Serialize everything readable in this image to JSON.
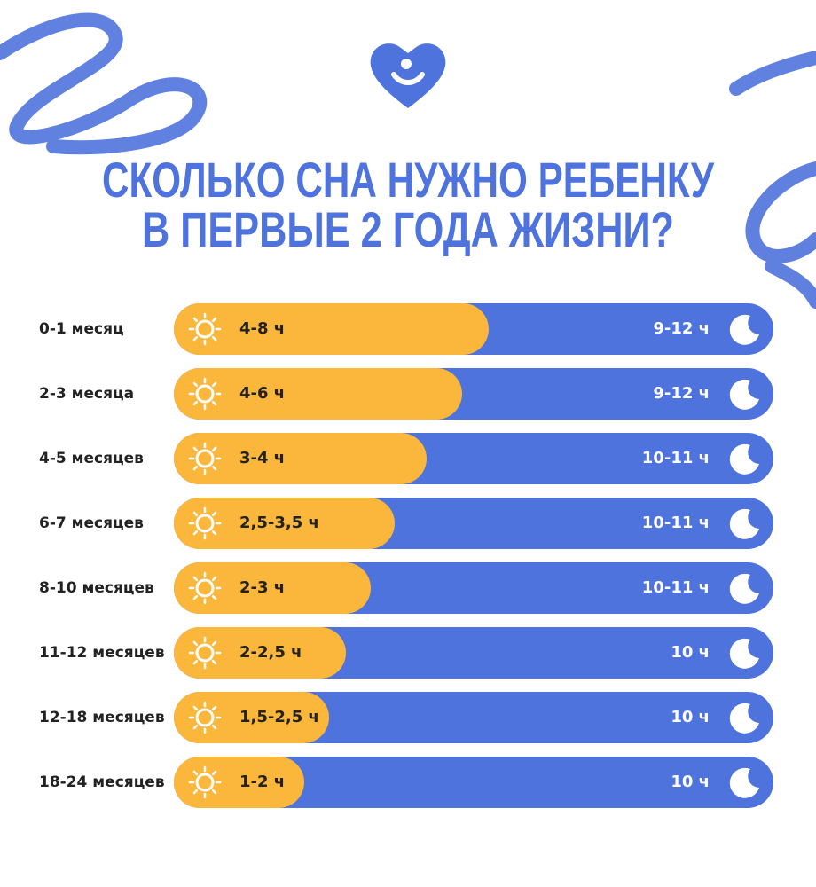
{
  "title": [
    "СКОЛЬКО СНА НУЖНО РЕБЕНКУ",
    "В ПЕРВЫЕ 2 ГОДА ЖИЗНИ?"
  ],
  "rows": [
    {
      "age": "0-1 месяц",
      "day": "4-8 ч",
      "night": "9-12 ч"
    },
    {
      "age": "2-3 месяца",
      "day": "4-6 ч",
      "night": "9-12 ч"
    },
    {
      "age": "4-5 месяцев",
      "day": "3-4 ч",
      "night": "10-11 ч"
    },
    {
      "age": "6-7 месяцев",
      "day": "2,5-3,5 ч",
      "night": "10-11 ч"
    },
    {
      "age": "8-10 месяцев",
      "day": "2-3 ч",
      "night": "10-11 ч"
    },
    {
      "age": "11-12 месяцев",
      "day": "2-2,5 ч",
      "night": "10 ч"
    },
    {
      "age": "12-18 месяцев",
      "day": "1,5-2,5 ч",
      "night": "10 ч"
    },
    {
      "age": "18-24 месяцев",
      "day": "1-2 ч",
      "night": "10 ч"
    }
  ]
}
